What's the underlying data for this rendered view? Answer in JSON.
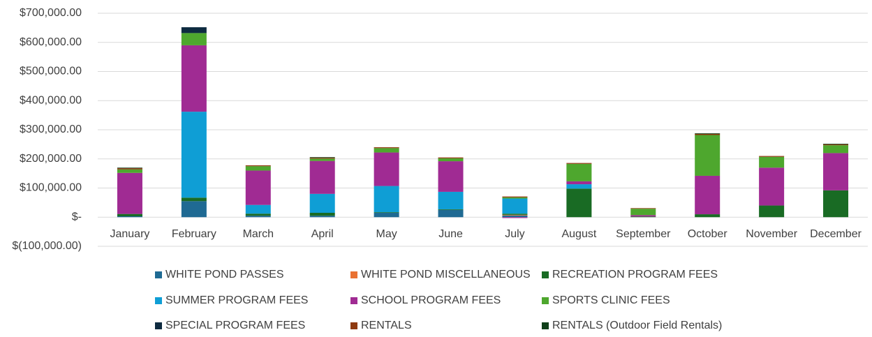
{
  "chart_data": {
    "type": "stacked_bar",
    "categories": [
      "January",
      "February",
      "March",
      "April",
      "May",
      "June",
      "July",
      "August",
      "September",
      "October",
      "November",
      "December"
    ],
    "series": [
      {
        "name": "WHITE POND PASSES",
        "color": "#1f6a93",
        "values": [
          3000,
          55000,
          5000,
          5000,
          15000,
          25000,
          6000,
          0,
          0,
          0,
          0,
          0
        ]
      },
      {
        "name": "WHITE POND MISCELLANEOUS",
        "color": "#e97132",
        "values": [
          0,
          0,
          0,
          0,
          0,
          0,
          2000,
          0,
          0,
          0,
          0,
          0
        ]
      },
      {
        "name": "RECREATION PROGRAM FEES",
        "color": "#196b24",
        "values": [
          8000,
          12000,
          7000,
          10000,
          2000,
          2000,
          4000,
          98000,
          2000,
          10000,
          40000,
          92000
        ]
      },
      {
        "name": "SUMMER PROGRAM FEES",
        "color": "#0f9ed5",
        "values": [
          0,
          295000,
          30000,
          65000,
          90000,
          60000,
          52000,
          15000,
          0,
          0,
          0,
          0
        ]
      },
      {
        "name": "SCHOOL PROGRAM FEES",
        "color": "#a02b93",
        "values": [
          141000,
          228000,
          118000,
          113000,
          115000,
          105000,
          -3000,
          10000,
          5000,
          132000,
          130000,
          128000
        ]
      },
      {
        "name": "SPORTS CLINIC FEES",
        "color": "#4ea72e",
        "values": [
          12000,
          42000,
          15000,
          8000,
          15000,
          10000,
          4000,
          60000,
          22000,
          140000,
          37000,
          27000
        ]
      },
      {
        "name": "SPECIAL PROGRAM FEES",
        "color": "#0e2b40",
        "values": [
          0,
          20000,
          0,
          0,
          0,
          0,
          0,
          0,
          0,
          0,
          0,
          0
        ]
      },
      {
        "name": "RENTALS",
        "color": "#8e3a10",
        "values": [
          4000,
          0,
          3000,
          3000,
          3000,
          3000,
          3000,
          3000,
          2000,
          4000,
          3000,
          3000
        ]
      },
      {
        "name": "RENTALS (Outdoor Field Rentals)",
        "color": "#10401a",
        "values": [
          2000,
          0,
          0,
          2000,
          0,
          0,
          0,
          0,
          0,
          2000,
          0,
          2000
        ]
      }
    ],
    "ylim": [
      -100000,
      700000
    ],
    "yticks": [
      {
        "value": -100000,
        "label": "$(100,000.00)"
      },
      {
        "value": 0,
        "label": "$-"
      },
      {
        "value": 100000,
        "label": "$100,000.00"
      },
      {
        "value": 200000,
        "label": "$200,000.00"
      },
      {
        "value": 300000,
        "label": "$300,000.00"
      },
      {
        "value": 400000,
        "label": "$400,000.00"
      },
      {
        "value": 500000,
        "label": "$500,000.00"
      },
      {
        "value": 600000,
        "label": "$600,000.00"
      },
      {
        "value": 700000,
        "label": "$700,000.00"
      }
    ],
    "grid": true
  }
}
